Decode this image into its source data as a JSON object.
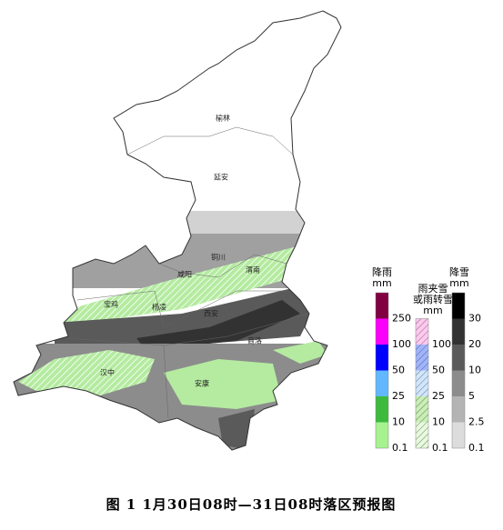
{
  "map": {
    "cities": [
      "榆林",
      "延安",
      "铜川",
      "渭南",
      "咸阳",
      "宝鸡",
      "杨凌",
      "西安",
      "商洛",
      "汉中",
      "安康"
    ]
  },
  "legend": [
    {
      "title": [
        "降雨",
        "mm"
      ],
      "items": [
        {
          "value": 0.1,
          "color": "#a6f28f"
        },
        {
          "value": 10,
          "color": "#3dba3d"
        },
        {
          "value": 25,
          "color": "#61b8ff"
        },
        {
          "value": 50,
          "color": "#0000fe"
        },
        {
          "value": 100,
          "color": "#fa00fa"
        },
        {
          "value": 250,
          "color": "#810040"
        }
      ]
    },
    {
      "title": [
        "雨夹雪",
        "或雨转雪",
        "mm"
      ],
      "items": [
        {
          "value": 0.1,
          "color": "#e6fadc"
        },
        {
          "value": 10,
          "color": "#c8f0b4"
        },
        {
          "value": 25,
          "color": "#cfe6ff"
        },
        {
          "value": 50,
          "color": "#9fb4ff"
        },
        {
          "value": 100,
          "color": "#ffc8f0"
        }
      ]
    },
    {
      "title": [
        "降雪",
        "mm"
      ],
      "items": [
        {
          "value": 0.1,
          "color": "#dcdcdc"
        },
        {
          "value": 2.5,
          "color": "#b4b4b4"
        },
        {
          "value": 5,
          "color": "#8c8c8c"
        },
        {
          "value": 10,
          "color": "#5a5a5a"
        },
        {
          "value": 20,
          "color": "#323232"
        },
        {
          "value": 30,
          "color": "#000000"
        }
      ]
    }
  ],
  "caption": "图 1 1月30日08时—31日08时落区预报图"
}
